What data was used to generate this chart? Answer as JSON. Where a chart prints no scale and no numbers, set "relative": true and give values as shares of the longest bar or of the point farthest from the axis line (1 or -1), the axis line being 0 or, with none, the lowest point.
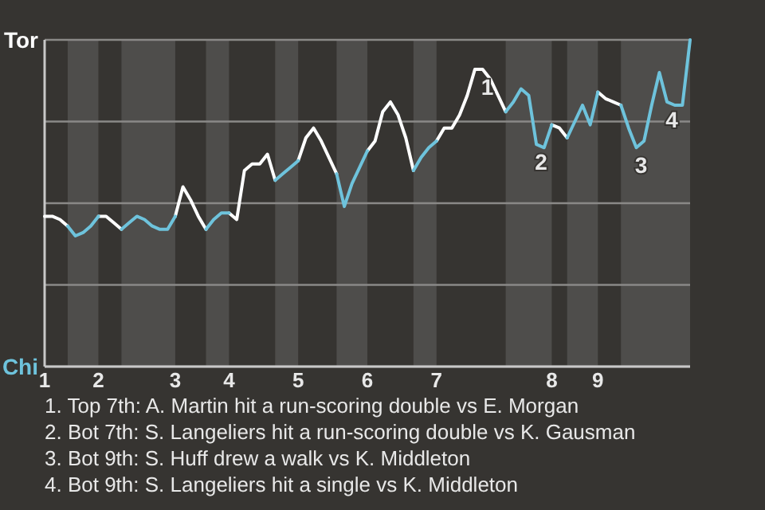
{
  "chart_data": {
    "type": "line",
    "relative": true,
    "categories": [
      "1",
      null,
      null,
      null,
      null,
      null,
      null,
      "2",
      null,
      null,
      null,
      null,
      null,
      null,
      null,
      null,
      null,
      "3",
      null,
      null,
      null,
      null,
      null,
      null,
      "4",
      null,
      null,
      null,
      null,
      null,
      null,
      null,
      null,
      "5",
      null,
      null,
      null,
      null,
      null,
      null,
      null,
      null,
      "6",
      null,
      null,
      null,
      null,
      null,
      null,
      null,
      null,
      "7",
      null,
      null,
      null,
      null,
      null,
      null,
      null,
      null,
      null,
      null,
      null,
      null,
      null,
      null,
      "8",
      null,
      null,
      null,
      null,
      null,
      "9",
      null,
      null,
      null,
      null,
      null,
      null,
      null,
      null,
      null,
      null,
      null,
      null
    ],
    "series": [
      {
        "name": "Tor",
        "color": "#ffffff",
        "values": [
          0.46,
          0.46,
          0.45,
          0.43,
          null,
          null,
          null,
          0.46,
          0.46,
          0.44,
          0.42,
          null,
          null,
          null,
          null,
          null,
          null,
          0.46,
          0.55,
          0.51,
          0.46,
          0.42,
          null,
          null,
          0.47,
          0.45,
          0.6,
          0.62,
          0.62,
          0.65,
          0.57,
          null,
          null,
          0.63,
          0.7,
          0.73,
          0.69,
          0.64,
          0.59,
          null,
          null,
          null,
          0.66,
          0.69,
          0.78,
          0.81,
          0.77,
          0.7,
          0.6,
          null,
          null,
          0.69,
          0.73,
          0.73,
          0.77,
          0.83,
          0.91,
          0.91,
          0.88,
          0.83,
          0.78,
          null,
          null,
          null,
          null,
          null,
          0.74,
          0.73,
          0.7,
          null,
          null,
          null,
          0.84,
          0.82,
          0.81,
          0.8,
          null,
          null,
          null,
          null,
          null,
          null,
          null,
          null,
          null
        ]
      },
      {
        "name": "Chi",
        "color": "#6ec3dc",
        "values": [
          null,
          null,
          null,
          0.43,
          0.4,
          0.41,
          0.43,
          0.46,
          null,
          null,
          0.42,
          0.44,
          0.46,
          0.45,
          0.43,
          0.42,
          0.42,
          0.46,
          null,
          null,
          null,
          0.42,
          0.45,
          0.47,
          0.47,
          null,
          null,
          null,
          null,
          null,
          0.57,
          0.59,
          0.61,
          0.63,
          null,
          null,
          null,
          null,
          0.59,
          0.49,
          0.56,
          0.61,
          0.66,
          null,
          null,
          null,
          null,
          null,
          0.6,
          0.64,
          0.67,
          0.69,
          null,
          null,
          null,
          null,
          null,
          null,
          null,
          null,
          0.78,
          0.81,
          0.85,
          0.83,
          0.68,
          0.67,
          0.74,
          null,
          0.7,
          0.75,
          0.8,
          0.74,
          0.84,
          null,
          null,
          0.8,
          0.73,
          0.67,
          0.69,
          0.8,
          0.9,
          0.81,
          0.8,
          0.8,
          1.0
        ]
      }
    ],
    "grid": "y",
    "legend": "left",
    "annotations": [
      {
        "text": "1",
        "y": 0.91
      },
      {
        "text": "2",
        "y": 0.68
      },
      {
        "text": "3",
        "y": 0.67
      },
      {
        "text": "4",
        "y": 0.81
      },
      "1. Top 7th: A. Martin hit a run-scoring double vs E. Morgan",
      "2. Bot 7th: S. Langeliers hit a run-scoring double vs K. Gausman",
      "3. Bot 9th: S. Huff drew a walk vs K. Middleton",
      "4. Bot 9th: S. Langeliers hit a single vs K. Middleton"
    ]
  }
}
